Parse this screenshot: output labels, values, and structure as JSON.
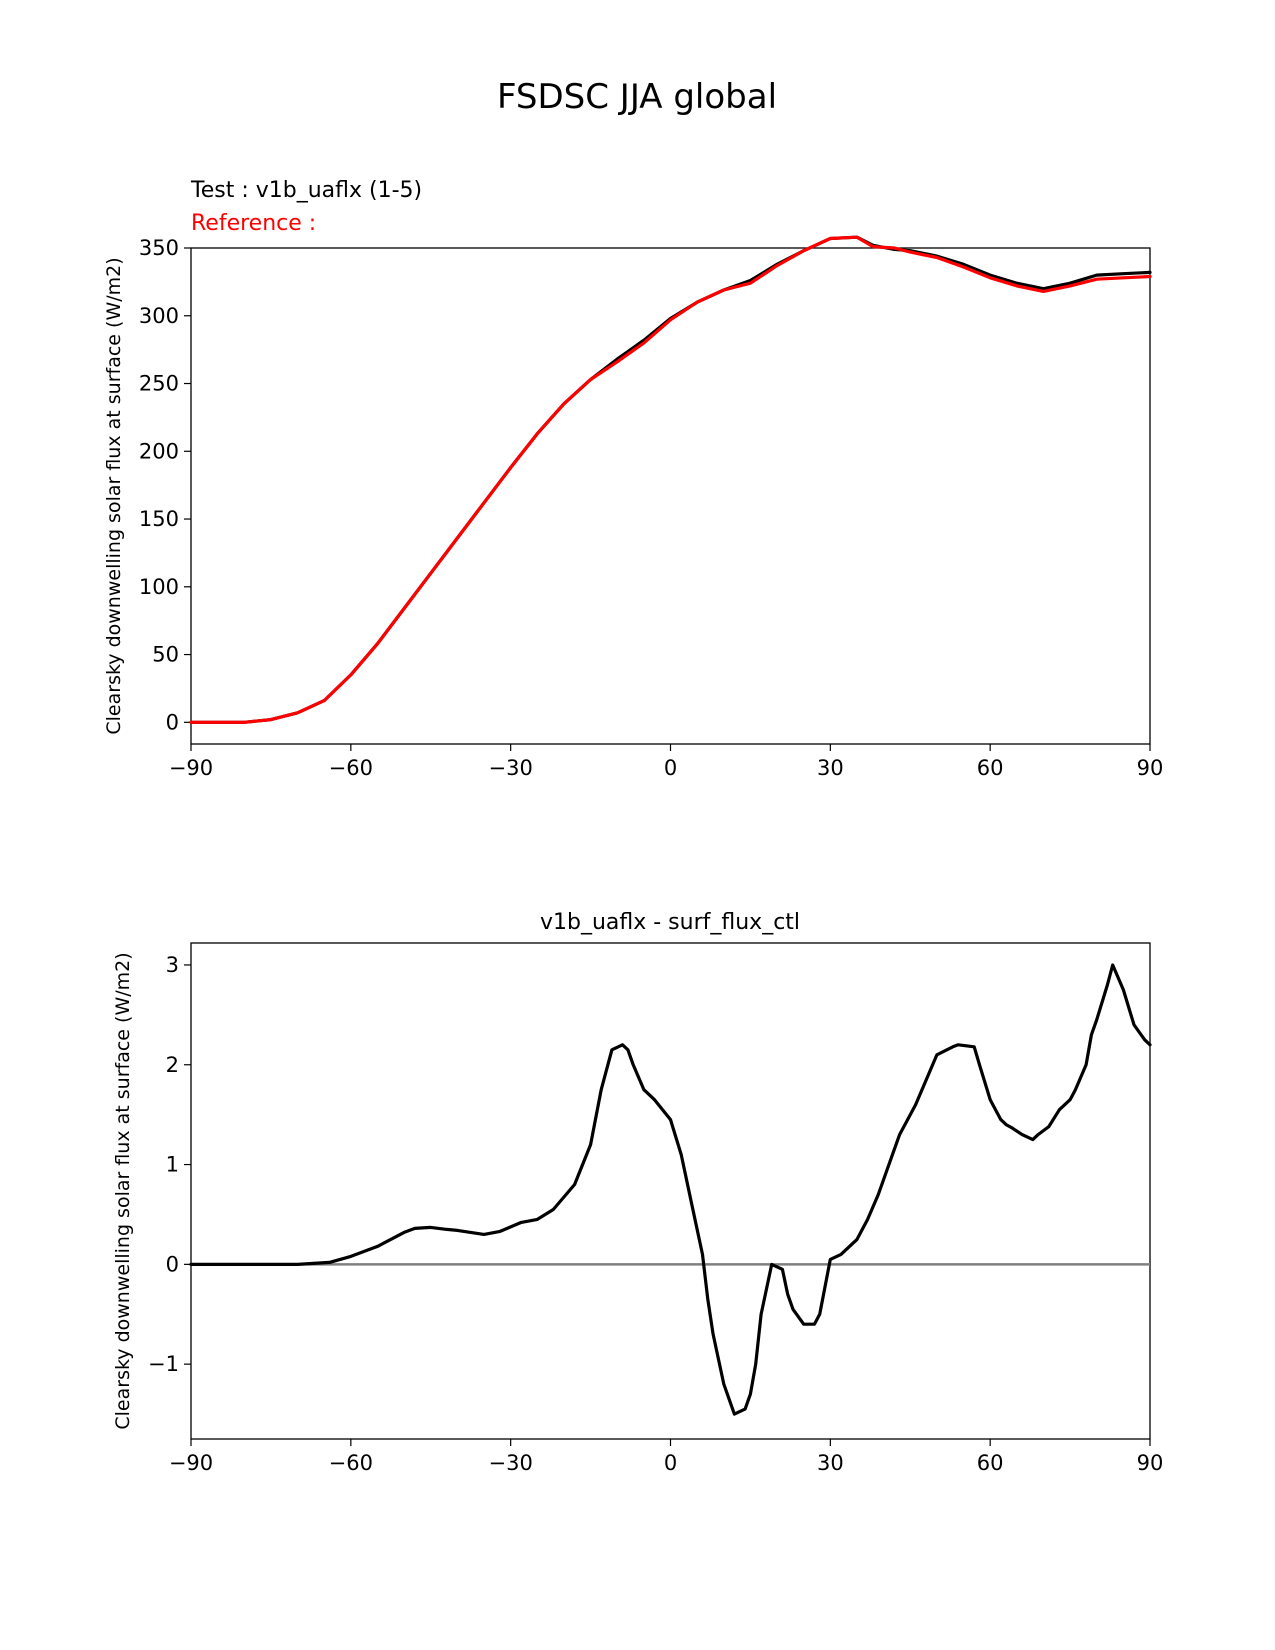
{
  "figure": {
    "title": "FSDSC JJA global"
  },
  "colors": {
    "test": "#000000",
    "reference": "#ff0000",
    "zero_line": "#808080",
    "axes": "#000000"
  },
  "chart_data": [
    {
      "type": "line",
      "test_label": "Test : v1b_uaflx (1-5)",
      "reference_label": "Reference :",
      "xlabel": "",
      "ylabel": "Clearsky downwelling solar flux at surface (W/m2)",
      "xlim": [
        -90,
        90
      ],
      "ylim": [
        -16,
        350
      ],
      "xticks": [
        -90,
        -60,
        -30,
        0,
        30,
        60,
        90
      ],
      "xtick_labels": [
        "−90",
        "−60",
        "−30",
        "0",
        "30",
        "60",
        "90"
      ],
      "yticks": [
        0,
        50,
        100,
        150,
        200,
        250,
        300,
        350
      ],
      "ytick_labels": [
        "0",
        "50",
        "100",
        "150",
        "200",
        "250",
        "300",
        "350"
      ],
      "series": [
        {
          "name": "test",
          "x": [
            -90,
            -80,
            -75,
            -70,
            -65,
            -60,
            -55,
            -50,
            -45,
            -40,
            -35,
            -30,
            -25,
            -20,
            -15,
            -10,
            -5,
            0,
            5,
            10,
            15,
            20,
            25,
            30,
            35,
            38,
            42,
            45,
            50,
            55,
            60,
            65,
            70,
            75,
            80,
            85,
            90
          ],
          "y": [
            0,
            0,
            2,
            7,
            16,
            35,
            58,
            84,
            110,
            136,
            162,
            188,
            213,
            235,
            253,
            268,
            282,
            298,
            310,
            319,
            326,
            338,
            348,
            357,
            358,
            352,
            349,
            348,
            344,
            338,
            330,
            324,
            320,
            324,
            330,
            331,
            332
          ]
        },
        {
          "name": "reference",
          "x": [
            -90,
            -80,
            -75,
            -70,
            -65,
            -60,
            -55,
            -50,
            -45,
            -40,
            -35,
            -30,
            -25,
            -20,
            -15,
            -10,
            -5,
            0,
            5,
            10,
            15,
            20,
            25,
            30,
            35,
            38,
            42,
            45,
            50,
            55,
            60,
            65,
            70,
            75,
            80,
            85,
            90
          ],
          "y": [
            0,
            0,
            2,
            7,
            16,
            35,
            58,
            84,
            110,
            136,
            162,
            188,
            213,
            235,
            253,
            266,
            280,
            297,
            310,
            319,
            324,
            337,
            348,
            357,
            358,
            351,
            350,
            347,
            343,
            336,
            328,
            322,
            318,
            322,
            327,
            328,
            329
          ]
        }
      ]
    },
    {
      "type": "line",
      "title": "v1b_uaflx - surf_flux_ctl",
      "xlabel": "",
      "ylabel": "Clearsky downwelling solar flux at surface (W/m2)",
      "xlim": [
        -90,
        90
      ],
      "ylim": [
        -1.75,
        3.22
      ],
      "xticks": [
        -90,
        -60,
        -30,
        0,
        30,
        60,
        90
      ],
      "xtick_labels": [
        "−90",
        "−60",
        "−30",
        "0",
        "30",
        "60",
        "90"
      ],
      "yticks": [
        -1,
        0,
        1,
        2,
        3
      ],
      "ytick_labels": [
        "−1",
        "0",
        "1",
        "2",
        "3"
      ],
      "zero_line": 0,
      "series": [
        {
          "name": "difference",
          "x": [
            -90,
            -80,
            -70,
            -64,
            -60,
            -55,
            -50,
            -48,
            -45,
            -42,
            -40,
            -35,
            -32,
            -28,
            -25,
            -22,
            -18,
            -15,
            -13,
            -11,
            -9,
            -8,
            -7,
            -5,
            -3,
            0,
            2,
            4,
            6,
            7,
            8,
            10,
            12,
            14,
            15,
            16,
            17,
            19,
            21,
            22,
            23,
            25,
            27,
            28,
            30,
            32,
            33,
            35,
            37,
            39,
            41,
            43,
            46,
            50,
            53,
            54,
            57,
            58,
            60,
            62,
            63,
            64,
            66,
            68,
            69,
            71,
            73,
            75,
            76,
            78,
            79,
            80,
            82,
            83,
            85,
            87,
            89,
            90
          ],
          "y": [
            0,
            0,
            0,
            0.02,
            0.08,
            0.18,
            0.32,
            0.36,
            0.37,
            0.35,
            0.34,
            0.3,
            0.33,
            0.42,
            0.45,
            0.55,
            0.8,
            1.2,
            1.75,
            2.15,
            2.2,
            2.15,
            2.0,
            1.75,
            1.65,
            1.45,
            1.1,
            0.6,
            0.1,
            -0.35,
            -0.7,
            -1.2,
            -1.5,
            -1.45,
            -1.3,
            -1.0,
            -0.5,
            0.0,
            -0.05,
            -0.3,
            -0.45,
            -0.6,
            -0.6,
            -0.5,
            0.05,
            0.1,
            0.15,
            0.25,
            0.45,
            0.7,
            1.0,
            1.3,
            1.6,
            2.1,
            2.18,
            2.2,
            2.18,
            2.0,
            1.65,
            1.45,
            1.4,
            1.37,
            1.3,
            1.25,
            1.3,
            1.38,
            1.55,
            1.65,
            1.75,
            2.0,
            2.3,
            2.45,
            2.8,
            3.0,
            2.75,
            2.4,
            2.25,
            2.2
          ]
        }
      ]
    }
  ]
}
